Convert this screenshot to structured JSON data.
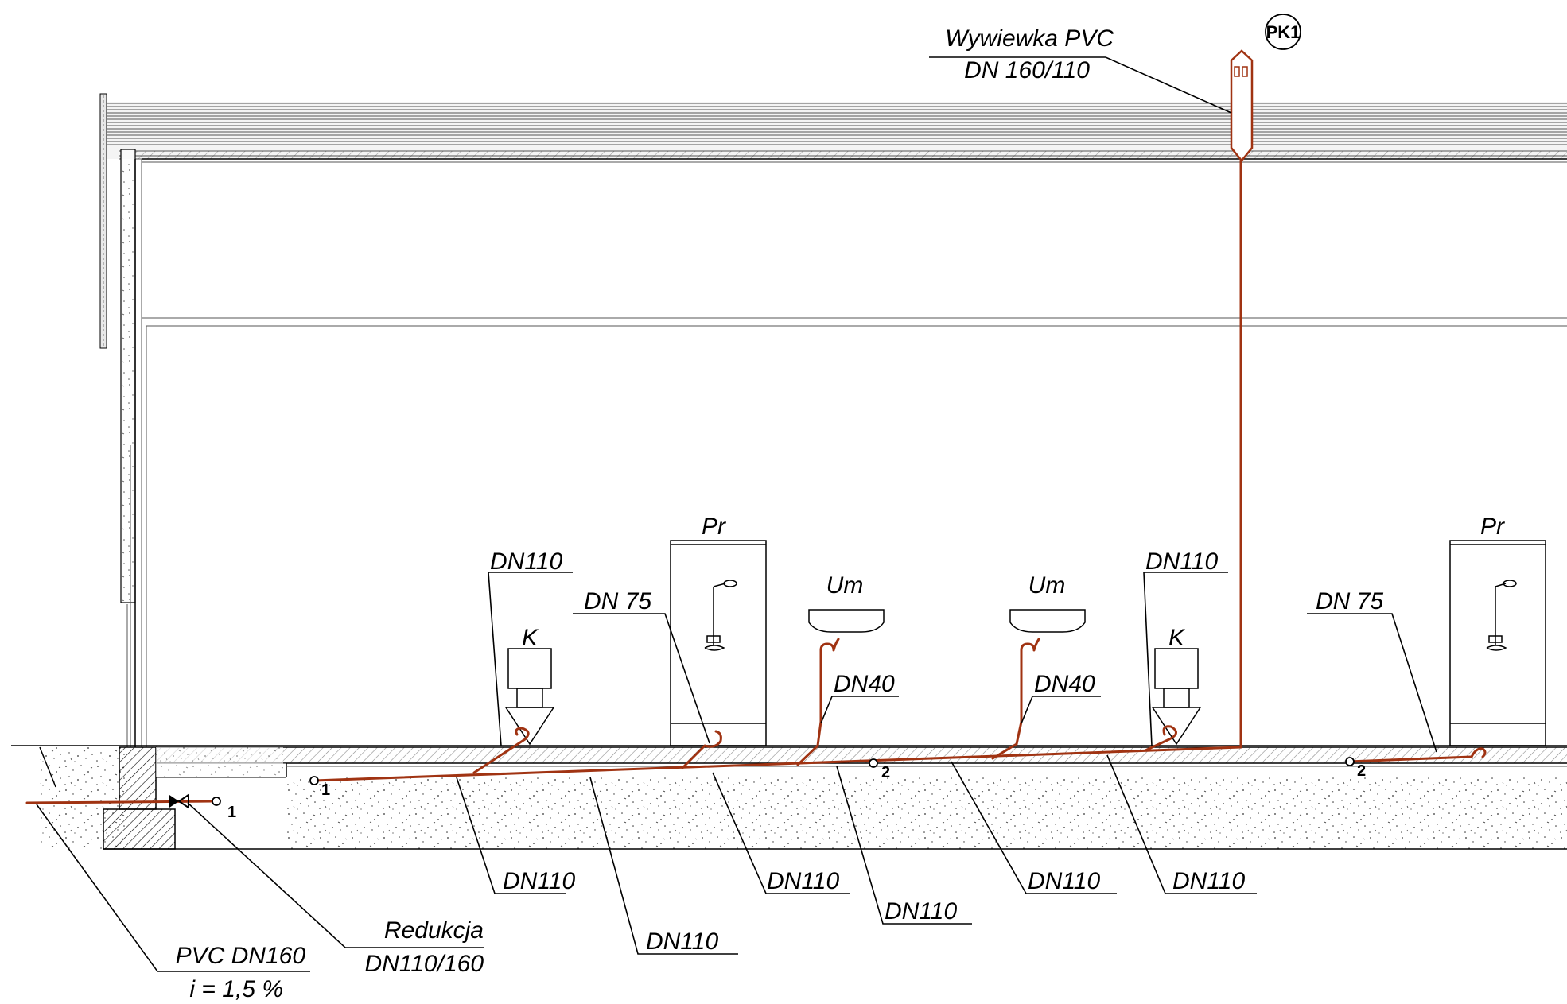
{
  "vent": {
    "label_line1": "Wywiewka PVC",
    "label_line2": "DN 160/110",
    "tag": "PK1"
  },
  "fixtures": {
    "shower_1": "Pr",
    "shower_2": "Pr",
    "basin_1": "Um",
    "basin_2": "Um",
    "toilet_1": "K",
    "toilet_2": "K"
  },
  "upper_labels": {
    "dn110_left": "DN110",
    "dn75_left": "DN 75",
    "dn40_1": "DN40",
    "dn40_2": "DN40",
    "dn110_right": "DN110",
    "dn75_right": "DN 75"
  },
  "lower_labels": {
    "dn110_a": "DN110",
    "dn110_b": "DN110",
    "dn110_c": "DN110",
    "dn110_d": "DN110",
    "dn110_e": "DN110",
    "dn110_f": "DN110"
  },
  "reduction": {
    "line1": "Redukcja",
    "line2": "DN110/160"
  },
  "main_pipe": {
    "line1": "PVC DN160",
    "line2": "i = 1,5 %"
  },
  "point_markers": {
    "p1a": "1",
    "p1b": "1",
    "p2a": "2",
    "p2b": "2"
  },
  "colors": {
    "pipe": "#a03312",
    "line": "#000000"
  }
}
